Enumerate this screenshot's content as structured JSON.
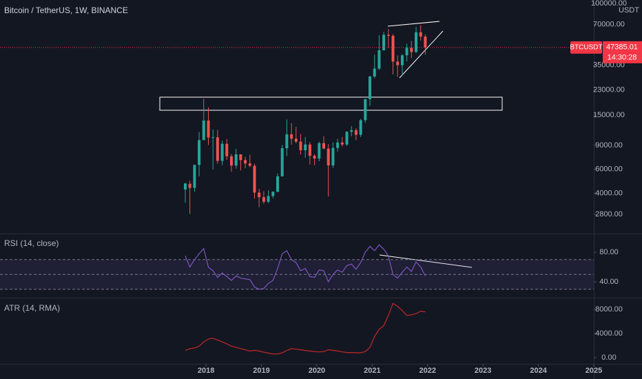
{
  "chart_data": [
    {
      "type": "candlestick",
      "title": "Bitcoin / TetherUS, 1W, BINANCE",
      "currency": "USDT",
      "log_scale": true,
      "up_color": "#26a69a",
      "down_color": "#ef5350",
      "xlim": [
        2014.28,
        2025.0
      ],
      "ylim": [
        2040,
        105900
      ],
      "yticks": [
        {
          "value": 100000,
          "label": "100000.00"
        },
        {
          "value": 70000,
          "label": "70000.00"
        },
        {
          "value": 35000,
          "label": "35000.00"
        },
        {
          "value": 23000,
          "label": "23000.00"
        },
        {
          "value": 15000,
          "label": "15000.00"
        },
        {
          "value": 9000,
          "label": "9000.00"
        },
        {
          "value": 6000,
          "label": "6000.00"
        },
        {
          "value": 4000,
          "label": "4000.00"
        },
        {
          "value": 2800,
          "label": "2800.00"
        }
      ],
      "last_price": {
        "symbol": "BTCUSDT",
        "value": 47385.01,
        "label": "47385.01",
        "countdown": "14:30:28",
        "color": "#f23645"
      },
      "x": [
        2017.625,
        2017.708,
        2017.792,
        2017.875,
        2017.958,
        2018.042,
        2018.125,
        2018.208,
        2018.292,
        2018.375,
        2018.458,
        2018.542,
        2018.625,
        2018.708,
        2018.792,
        2018.875,
        2018.958,
        2019.042,
        2019.125,
        2019.208,
        2019.292,
        2019.375,
        2019.458,
        2019.542,
        2019.625,
        2019.708,
        2019.792,
        2019.875,
        2019.958,
        2020.042,
        2020.125,
        2020.208,
        2020.292,
        2020.375,
        2020.458,
        2020.542,
        2020.625,
        2020.708,
        2020.792,
        2020.875,
        2020.958,
        2021.042,
        2021.125,
        2021.208,
        2021.292,
        2021.375,
        2021.458,
        2021.542,
        2021.625,
        2021.708,
        2021.792,
        2021.875,
        2021.958
      ],
      "open": [
        4261,
        4689,
        4378,
        6463,
        9838,
        13716,
        10285,
        10326,
        6923,
        9246,
        7485,
        6391,
        7730,
        7011,
        6626,
        6371,
        4041,
        3742,
        3458,
        3813,
        4103,
        5320,
        8574,
        10854,
        10080,
        9588,
        8289,
        9140,
        7541,
        7195,
        9352,
        8523,
        6410,
        8620,
        9448,
        9138,
        11335,
        11649,
        10776,
        13791,
        19695,
        28923,
        33092,
        45135,
        58740,
        57694,
        37253,
        35045,
        41461,
        47100,
        43824,
        61299,
        56950
      ],
      "high": [
        4745,
        4939,
        6470,
        11300,
        19798,
        17176,
        11786,
        11700,
        9759,
        10020,
        7760,
        8507,
        7750,
        7410,
        7680,
        6600,
        4313,
        4140,
        4198,
        4123,
        5600,
        9074,
        13970,
        13130,
        12325,
        10905,
        10370,
        9513,
        7750,
        9579,
        10500,
        9188,
        9468,
        10080,
        10380,
        11444,
        12468,
        12050,
        14100,
        19863,
        29300,
        41950,
        58352,
        61781,
        64854,
        59500,
        41330,
        42448,
        50500,
        52920,
        67000,
        69000,
        59100
      ],
      "low": [
        3400,
        2817,
        4110,
        5325,
        10400,
        9035,
        6000,
        6600,
        6425,
        7032,
        5755,
        6070,
        5880,
        6100,
        6200,
        3652,
        3156,
        3349,
        3373,
        3670,
        4067,
        5317,
        7512,
        9110,
        9320,
        7710,
        7300,
        6515,
        6435,
        6871,
        8445,
        3782,
        6150,
        8100,
        8833,
        8893,
        10518,
        9825,
        10375,
        13195,
        17572,
        28130,
        32296,
        44950,
        47044,
        30000,
        28805,
        29278,
        37332,
        39600,
        43283,
        53256,
        42000
      ],
      "close": [
        4724,
        4378,
        6463,
        9838,
        13716,
        10285,
        10326,
        6923,
        9246,
        7485,
        6391,
        7730,
        7011,
        6626,
        6371,
        4041,
        3742,
        3458,
        3813,
        4103,
        5320,
        8574,
        10854,
        10080,
        9588,
        8289,
        9140,
        7541,
        7195,
        9352,
        8523,
        6410,
        8620,
        9448,
        9138,
        11335,
        11649,
        10776,
        13791,
        19695,
        28923,
        33092,
        45135,
        58740,
        57694,
        37253,
        35045,
        41461,
        47100,
        43824,
        61299,
        56950,
        47385.01
      ]
    },
    {
      "type": "line",
      "title": "RSI (14, close)",
      "color": "#7e57c2",
      "bands": [
        30,
        50,
        70
      ],
      "band_color": "#7e57c2",
      "xlim": [
        2014.28,
        2025.0
      ],
      "ylim": [
        18.6,
        103.3
      ],
      "yticks": [
        {
          "value": 80,
          "label": "80.00"
        },
        {
          "value": 40,
          "label": "40.00"
        }
      ],
      "x": [
        2017.625,
        2017.708,
        2017.792,
        2017.875,
        2017.958,
        2018.042,
        2018.125,
        2018.208,
        2018.292,
        2018.375,
        2018.458,
        2018.542,
        2018.625,
        2018.708,
        2018.792,
        2018.875,
        2018.958,
        2019.042,
        2019.125,
        2019.208,
        2019.292,
        2019.375,
        2019.458,
        2019.542,
        2019.625,
        2019.708,
        2019.792,
        2019.875,
        2019.958,
        2020.042,
        2020.125,
        2020.208,
        2020.292,
        2020.375,
        2020.458,
        2020.542,
        2020.625,
        2020.708,
        2020.792,
        2020.875,
        2020.958,
        2021.042,
        2021.125,
        2021.208,
        2021.292,
        2021.375,
        2021.458,
        2021.542,
        2021.625,
        2021.708,
        2021.792,
        2021.875,
        2021.958
      ],
      "values": [
        75,
        60,
        70,
        78,
        85,
        60,
        55,
        46,
        52,
        47,
        42,
        48,
        45,
        44,
        43,
        33,
        30,
        31,
        38,
        42,
        58,
        78,
        82,
        70,
        66,
        55,
        58,
        47,
        46,
        56,
        55,
        40,
        50,
        56,
        53,
        62,
        64,
        57,
        66,
        80,
        88,
        82,
        90,
        84,
        75,
        50,
        45,
        53,
        60,
        54,
        67,
        60,
        48
      ]
    },
    {
      "type": "line",
      "title": "ATR (14, RMA)",
      "color": "#c62828",
      "xlim": [
        2014.28,
        2025.0
      ],
      "ylim": [
        -1030,
        9830
      ],
      "yticks": [
        {
          "value": 8000,
          "label": "8000.00"
        },
        {
          "value": 4000,
          "label": "4000.00"
        },
        {
          "value": 0,
          "label": "0.00"
        }
      ],
      "xticks": [
        2018,
        2019,
        2020,
        2021,
        2022,
        2023,
        2024,
        2025
      ],
      "x": [
        2017.625,
        2017.708,
        2017.792,
        2017.875,
        2017.958,
        2018.042,
        2018.125,
        2018.208,
        2018.292,
        2018.375,
        2018.458,
        2018.542,
        2018.625,
        2018.708,
        2018.792,
        2018.875,
        2018.958,
        2019.042,
        2019.125,
        2019.208,
        2019.292,
        2019.375,
        2019.458,
        2019.542,
        2019.625,
        2019.708,
        2019.792,
        2019.875,
        2019.958,
        2020.042,
        2020.125,
        2020.208,
        2020.292,
        2020.375,
        2020.458,
        2020.542,
        2020.625,
        2020.708,
        2020.792,
        2020.875,
        2020.958,
        2021.042,
        2021.125,
        2021.208,
        2021.292,
        2021.375,
        2021.458,
        2021.542,
        2021.625,
        2021.708,
        2021.792,
        2021.875,
        2021.958
      ],
      "values": [
        1200,
        1500,
        1600,
        1900,
        2600,
        3100,
        3200,
        2900,
        2600,
        2300,
        1900,
        1700,
        1500,
        1300,
        1100,
        1200,
        1100,
        900,
        750,
        600,
        600,
        800,
        1200,
        1500,
        1400,
        1300,
        1200,
        1100,
        1000,
        950,
        1000,
        1300,
        1200,
        1100,
        950,
        850,
        850,
        800,
        800,
        1000,
        1700,
        3500,
        4700,
        5300,
        7000,
        9000,
        8500,
        7800,
        7000,
        7100,
        7300,
        7700,
        7600
      ]
    }
  ]
}
